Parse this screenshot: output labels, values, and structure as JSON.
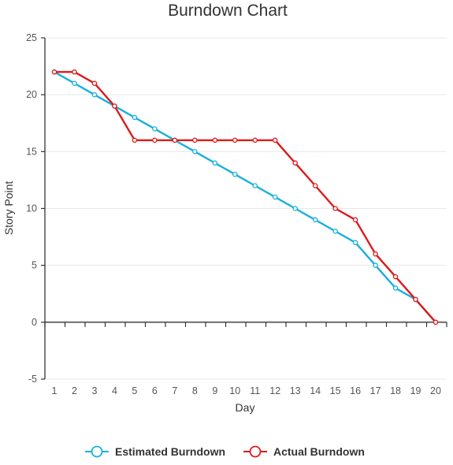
{
  "chart_data": {
    "type": "line",
    "title": "Burndown Chart",
    "xlabel": "Day",
    "ylabel": "Story Point",
    "x": [
      1,
      2,
      3,
      4,
      5,
      6,
      7,
      8,
      9,
      10,
      11,
      12,
      13,
      14,
      15,
      16,
      17,
      18,
      19,
      20
    ],
    "ylim": [
      -5,
      25
    ],
    "yticks": [
      -5,
      0,
      5,
      10,
      15,
      20,
      25
    ],
    "grid": true,
    "legend_position": "bottom-center",
    "series": [
      {
        "name": "Estimated Burndown",
        "color": "#1ab0dd",
        "values": [
          22,
          21,
          20,
          19,
          18,
          17,
          16,
          15,
          14,
          13,
          12,
          11,
          10,
          9,
          8,
          7,
          5,
          3,
          2,
          0
        ]
      },
      {
        "name": "Actual Burndown",
        "color": "#dd1a1a",
        "values": [
          22,
          22,
          21,
          19,
          16,
          16,
          16,
          16,
          16,
          16,
          16,
          16,
          14,
          12,
          10,
          9,
          6,
          4,
          2,
          0
        ]
      }
    ]
  }
}
